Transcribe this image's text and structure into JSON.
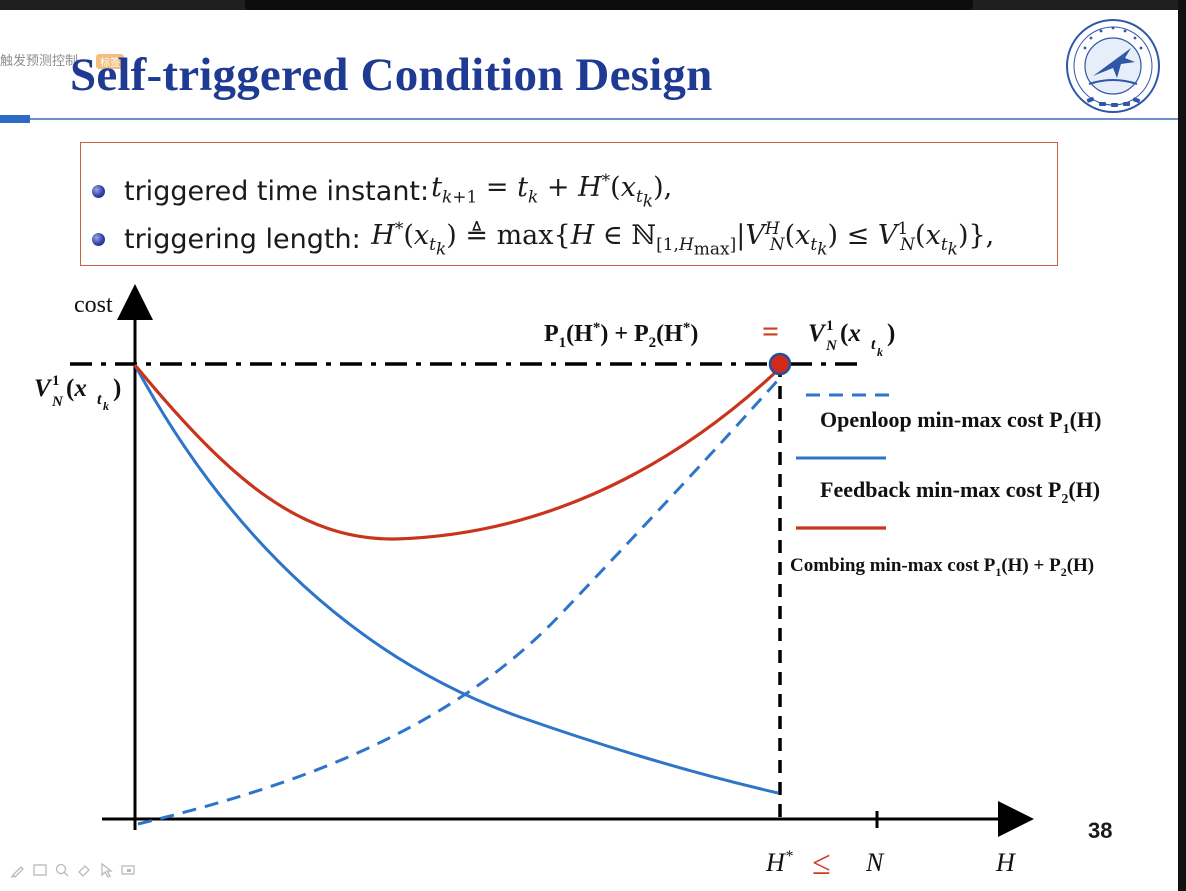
{
  "watermark": {
    "text": "触发预测控制",
    "tag": "标签"
  },
  "slide": {
    "title": "Self-triggered Condition Design",
    "page_number": "38"
  },
  "bullets": [
    {
      "label": "triggered time instant:",
      "formula": "t_{k+1} = t_k + H*(x_{t_k}),"
    },
    {
      "label": "triggering length:",
      "formula": "H*(x_{t_k}) ≜ max{H ∈ ℕ_[1,H_max] | V_N^H(x_{t_k}) ≤ V_N^1(x_{t_k})},"
    }
  ],
  "chart_data": {
    "type": "line",
    "ylabel": "cost",
    "xlabel": "H",
    "y_start_label": "V_N^1(x_{t_k})",
    "x_ticks": [
      "H*",
      "≤",
      "N"
    ],
    "top_annotation": {
      "left": "P₁(H*) + P₂(H*)",
      "eq": "=",
      "right": "V_N^1(x_{t_k})"
    },
    "legend": [
      {
        "name": "Openloop min-max cost P₁(H)",
        "style": "dashed",
        "color": "#2e75c9"
      },
      {
        "name": "Feedback min-max cost P₂(H)",
        "style": "solid",
        "color": "#2e75c9"
      },
      {
        "name": "Combing min-max cost P₁(H) + P₂(H)",
        "style": "solid",
        "color": "#c8341c"
      }
    ],
    "colors": {
      "openloop": "#2e75c9",
      "feedback": "#2e75c9",
      "combined": "#c8341c",
      "accent": "#d13b1f"
    }
  }
}
